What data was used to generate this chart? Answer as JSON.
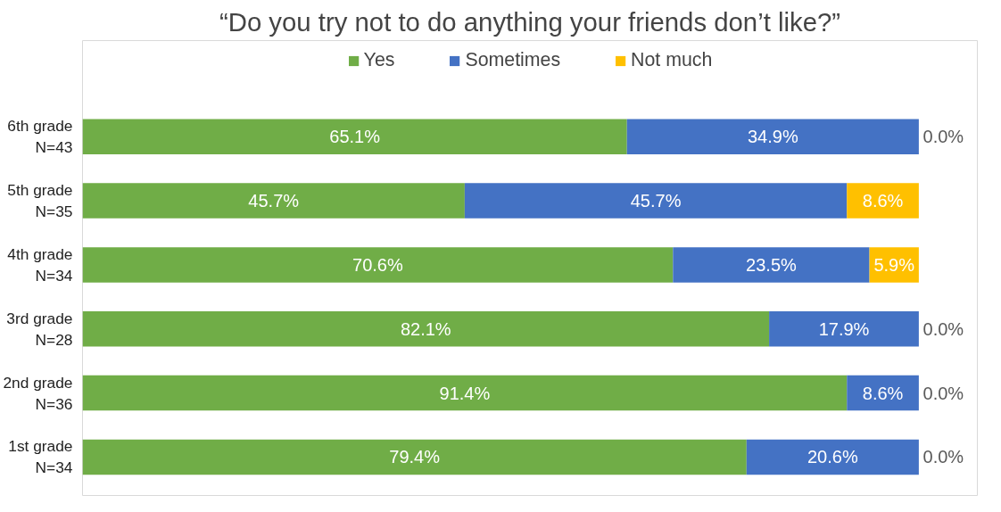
{
  "chart_data": {
    "type": "bar",
    "orientation": "horizontal",
    "stacked": true,
    "title": "“Do you try not to do anything your friends don’t like?”",
    "categories": [
      "6th grade\nN=43",
      "5th grade\nN=35",
      "4th grade\nN=34",
      "3rd grade\nN=28",
      "2nd grade\nN=36",
      "1st grade\nN=34"
    ],
    "series": [
      {
        "name": "Yes",
        "color": "#70ad47",
        "values": [
          65.1,
          45.7,
          70.6,
          82.1,
          91.4,
          79.4
        ],
        "value_labels": [
          "65.1%",
          "45.7%",
          "70.6%",
          "82.1%",
          "91.4%",
          "79.4%"
        ]
      },
      {
        "name": "Sometimes",
        "color": "#4472c4",
        "values": [
          34.9,
          45.7,
          23.5,
          17.9,
          8.6,
          20.6
        ],
        "value_labels": [
          "34.9%",
          "45.7%",
          "23.5%",
          "17.9%",
          "8.6%",
          "20.6%"
        ]
      },
      {
        "name": "Not much",
        "color": "#ffc000",
        "values": [
          0.0,
          8.6,
          5.9,
          0.0,
          0.0,
          0.0
        ],
        "value_labels": [
          "0.0%",
          "8.6%",
          "5.9%",
          "0.0%",
          "0.0%",
          "0.0%"
        ]
      }
    ],
    "tick_labels": "y",
    "legend": "top"
  }
}
